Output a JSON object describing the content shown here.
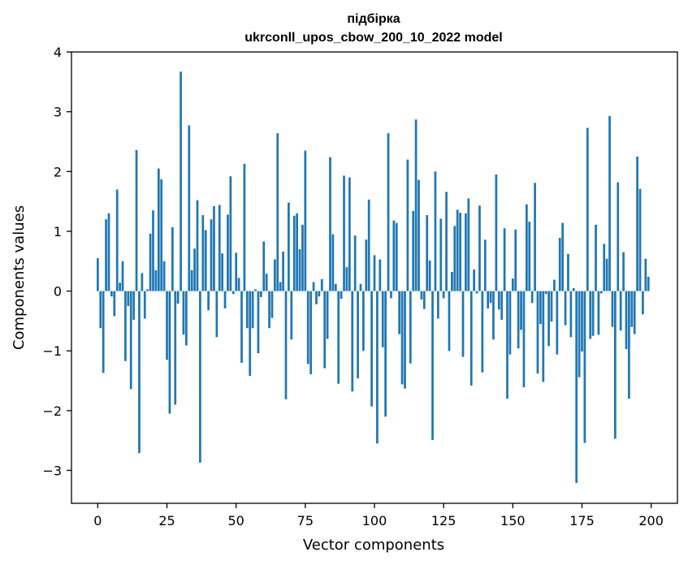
{
  "chart_data": {
    "type": "bar",
    "title": "підбірка",
    "subtitle": "ukrconll_upos_cbow_200_10_2022 model",
    "xlabel": "Vector components",
    "ylabel": "Components values",
    "xlim": [
      -9.5,
      209.5
    ],
    "ylim": [
      -3.55,
      4.0
    ],
    "xticks": [
      0,
      25,
      50,
      75,
      100,
      125,
      150,
      175,
      200
    ],
    "xtick_labels": [
      "0",
      "25",
      "50",
      "75",
      "100",
      "125",
      "150",
      "175",
      "200"
    ],
    "yticks": [
      -3,
      -2,
      -1,
      0,
      1,
      2,
      3,
      4
    ],
    "ytick_labels": [
      "−3",
      "−2",
      "−1",
      "0",
      "1",
      "2",
      "3",
      "4"
    ],
    "grid": false,
    "legend": "none",
    "bar_color": "#1f77b4",
    "series": [
      {
        "values": [
          0.55,
          -0.62,
          -1.37,
          1.2,
          1.3,
          -0.09,
          -0.42,
          1.7,
          0.14,
          0.5,
          -1.17,
          -0.25,
          -1.64,
          -0.48,
          2.36,
          -2.71,
          0.3,
          -0.46,
          0.03,
          0.96,
          1.35,
          0.35,
          2.05,
          1.87,
          0.5,
          -1.15,
          -2.05,
          1.07,
          -1.9,
          -0.21,
          3.67,
          -0.73,
          -0.91,
          2.77,
          0.35,
          0.71,
          1.52,
          -2.87,
          1.27,
          1.02,
          -0.32,
          1.2,
          1.42,
          -0.77,
          1.44,
          0.63,
          -0.29,
          1.28,
          1.92,
          -0.05,
          0.64,
          0.22,
          -1.2,
          2.13,
          -0.62,
          -1.42,
          -0.62,
          0.03,
          -1.04,
          -0.1,
          0.83,
          0.29,
          -0.62,
          -0.45,
          0.53,
          2.64,
          0.15,
          0.66,
          -1.81,
          1.48,
          -0.81,
          1.26,
          1.3,
          0.7,
          1.11,
          2.35,
          -1.22,
          -1.39,
          0.15,
          -0.22,
          -0.09,
          0.2,
          -1.29,
          -0.8,
          2.24,
          0.95,
          0.12,
          -1.55,
          -0.13,
          1.93,
          0.4,
          1.9,
          -1.68,
          0.93,
          -1.46,
          0.12,
          -1.0,
          0.86,
          1.53,
          -1.93,
          0.6,
          -2.55,
          0.53,
          -0.94,
          -2.1,
          2.64,
          -0.12,
          1.18,
          1.14,
          -0.72,
          -1.56,
          -1.63,
          2.2,
          -1.21,
          1.34,
          2.87,
          1.86,
          -0.14,
          -0.3,
          1.27,
          0.51,
          -2.49,
          2.0,
          -0.46,
          1.21,
          -0.12,
          1.66,
          -1.0,
          0.32,
          1.09,
          1.36,
          1.31,
          -1.1,
          1.3,
          1.55,
          -1.58,
          0.36,
          -0.04,
          1.43,
          -1.36,
          0.86,
          -0.29,
          -0.2,
          -0.81,
          1.95,
          -0.31,
          -0.48,
          1.05,
          -1.8,
          -1.06,
          0.21,
          1.03,
          -0.96,
          -0.65,
          -1.61,
          1.45,
          1.16,
          -0.2,
          1.81,
          -1.38,
          -0.55,
          -1.52,
          -0.05,
          -0.92,
          -0.51,
          0.19,
          -1.06,
          0.89,
          1.14,
          -0.57,
          0.62,
          -0.77,
          0.05,
          -3.21,
          -1.44,
          -1.01,
          -2.54,
          2.73,
          -0.8,
          -0.75,
          1.11,
          -0.73,
          -0.04,
          0.79,
          0.54,
          2.93,
          -0.6,
          -2.47,
          1.82,
          -0.66,
          0.65,
          -0.97,
          -1.8,
          -0.6,
          -0.72,
          2.25,
          1.71,
          -0.39,
          0.54,
          0.24
        ]
      }
    ]
  }
}
